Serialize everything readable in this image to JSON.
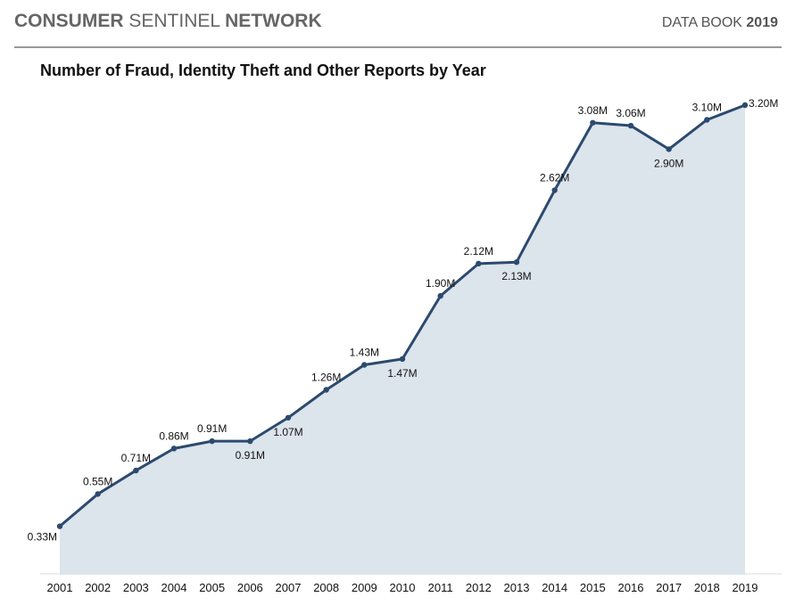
{
  "header": {
    "brand": [
      "CONSUMER",
      "SENTINEL",
      "NETWORK"
    ],
    "book": [
      "DATA BOOK",
      "2019"
    ]
  },
  "chart_data": {
    "type": "area",
    "title": "Number of Fraud, Identity Theft and Other Reports by Year",
    "categories": [
      "2001",
      "2002",
      "2003",
      "2004",
      "2005",
      "2006",
      "2007",
      "2008",
      "2009",
      "2010",
      "2011",
      "2012",
      "2013",
      "2014",
      "2015",
      "2016",
      "2017",
      "2018",
      "2019"
    ],
    "values": [
      0.33,
      0.55,
      0.71,
      0.86,
      0.91,
      0.91,
      1.07,
      1.26,
      1.43,
      1.47,
      1.9,
      2.12,
      2.13,
      2.62,
      3.08,
      3.06,
      2.9,
      3.1,
      3.2
    ],
    "value_labels": [
      "0.33M",
      "0.55M",
      "0.71M",
      "0.86M",
      "0.91M",
      "0.91M",
      "1.07M",
      "1.26M",
      "1.43M",
      "1.47M",
      "1.90M",
      "2.12M",
      "2.13M",
      "2.62M",
      "3.08M",
      "3.06M",
      "2.90M",
      "3.10M",
      "3.20M"
    ],
    "color": "#2c4a6e",
    "fill": "#dce4ec"
  }
}
